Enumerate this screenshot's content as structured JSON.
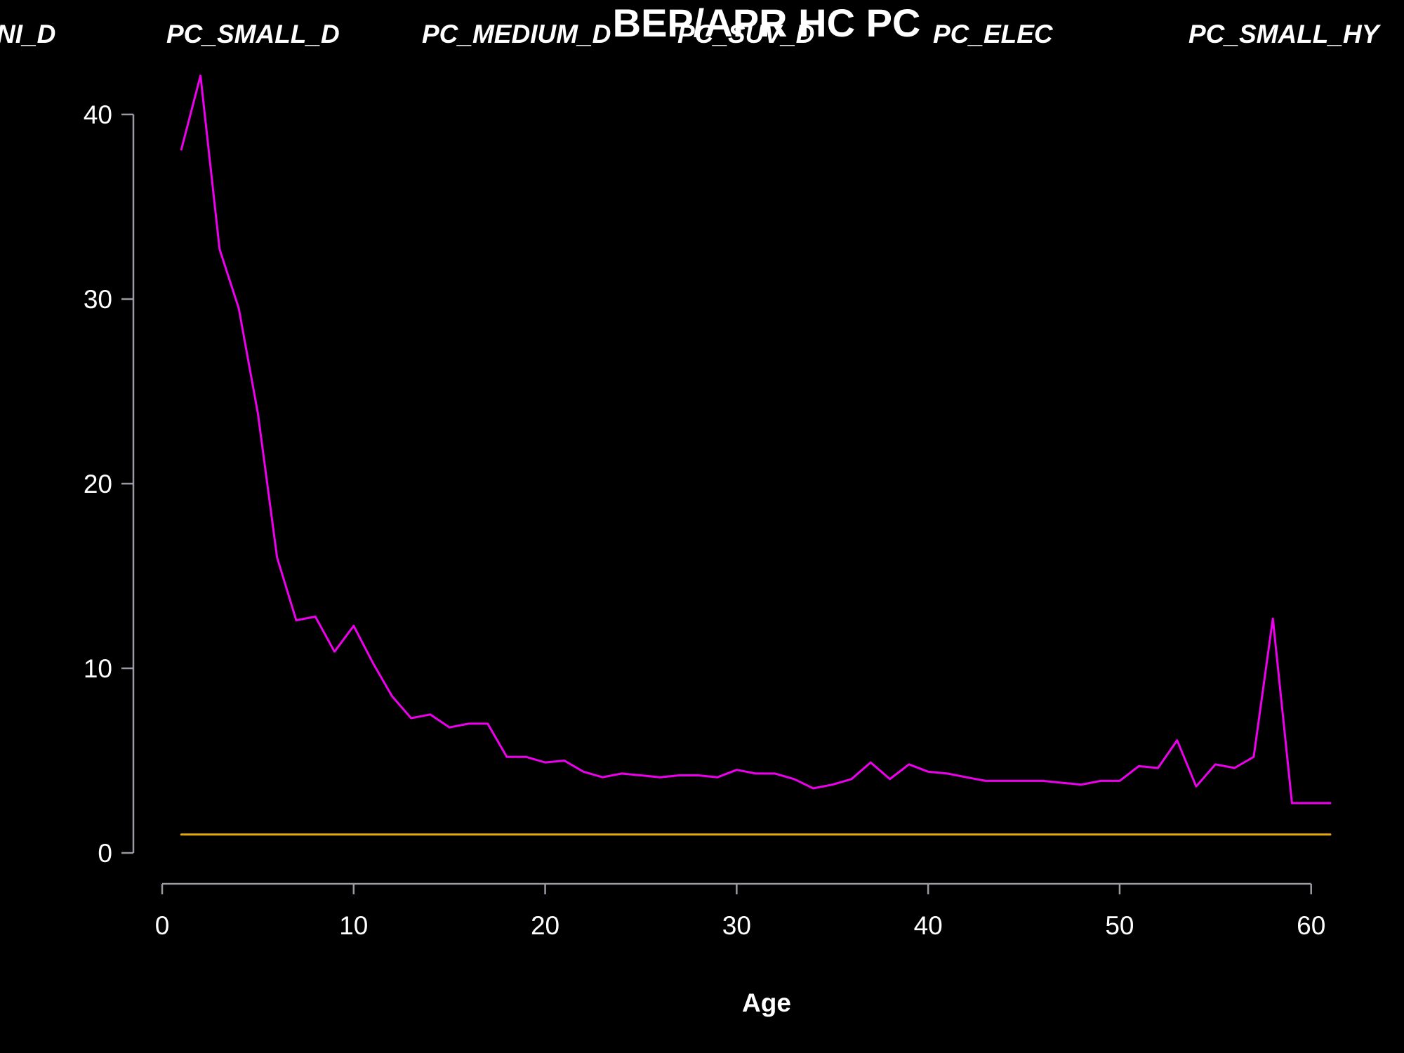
{
  "chart_data": {
    "type": "line",
    "title": "BEP/APR HC  PC",
    "xlabel": "Age",
    "ylabel": "",
    "xlim": [
      0,
      61
    ],
    "ylim": [
      0,
      42
    ],
    "x_ticks": [
      0,
      10,
      20,
      30,
      40,
      50,
      60
    ],
    "y_ticks": [
      0,
      10,
      20,
      30,
      40
    ],
    "grid": false,
    "legend_placement": "top",
    "legend_entries": [
      "NI_D",
      "PC_SMALL_D",
      "PC_MEDIUM_D",
      "PC_SUV_D",
      "PC_ELEC",
      "PC_SMALL_HY"
    ],
    "series": [
      {
        "color": "#ee00ee",
        "x": [
          1,
          2,
          3,
          4,
          5,
          6,
          7,
          8,
          9,
          10,
          11,
          12,
          13,
          14,
          15,
          16,
          17,
          18,
          19,
          20,
          21,
          22,
          23,
          24,
          25,
          26,
          27,
          28,
          29,
          30,
          31,
          32,
          33,
          34,
          35,
          36,
          37,
          38,
          39,
          40,
          41,
          42,
          43,
          44,
          45,
          46,
          47,
          48,
          49,
          50,
          51,
          52,
          53,
          54,
          55,
          56,
          57,
          58,
          59,
          60,
          61
        ],
        "y": [
          38.1,
          42.1,
          32.7,
          29.5,
          23.8,
          16.0,
          12.6,
          12.8,
          10.9,
          12.3,
          10.3,
          8.5,
          7.3,
          7.5,
          6.8,
          7.0,
          7.0,
          5.2,
          5.2,
          4.9,
          5.0,
          4.4,
          4.1,
          4.3,
          4.2,
          4.1,
          4.2,
          4.2,
          4.1,
          4.5,
          4.3,
          4.3,
          4.0,
          3.5,
          3.7,
          4.0,
          4.9,
          4.0,
          4.8,
          4.4,
          4.3,
          4.1,
          3.9,
          3.9,
          3.9,
          3.9,
          3.8,
          3.7,
          3.9,
          3.9,
          4.7,
          4.6,
          6.1,
          3.6,
          4.8,
          4.6,
          5.2,
          12.7,
          2.7,
          2.7,
          2.7
        ]
      },
      {
        "color": "#e6a80f",
        "x": [
          1,
          61
        ],
        "y": [
          1,
          1
        ]
      }
    ]
  }
}
